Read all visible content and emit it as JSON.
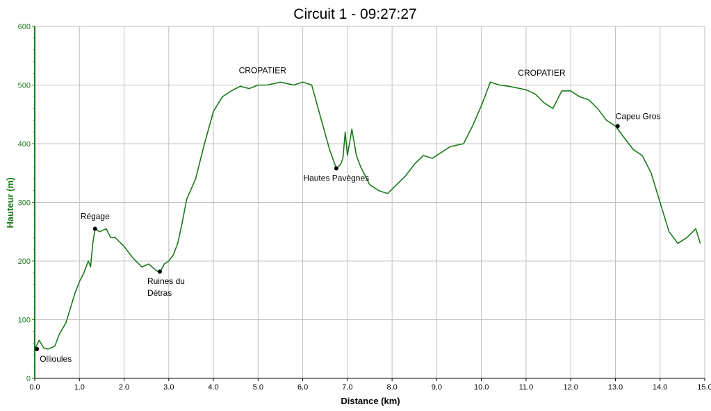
{
  "chart_data": {
    "type": "line",
    "title": "Circuit 1 - 09:27:27",
    "xlabel": "Distance (km)",
    "ylabel": "Hauteur (m)",
    "xlim": [
      0,
      15
    ],
    "ylim": [
      0,
      600
    ],
    "x_ticks": [
      "0.0",
      "1.0",
      "2.0",
      "3.0",
      "4.0",
      "5.0",
      "6.0",
      "7.0",
      "8.0",
      "9.0",
      "10.0",
      "11.0",
      "12.0",
      "13.0",
      "14.0",
      "15.0"
    ],
    "y_ticks": [
      "0",
      "100",
      "200",
      "300",
      "400",
      "500",
      "600"
    ],
    "grid": true,
    "legend": "none",
    "colors": {
      "line": "#1a7a1a",
      "y_axis": "#1a7a1a",
      "grid": "#c0c0c0",
      "marker": "#000000"
    },
    "series": [
      {
        "x": [
          0.0,
          0.1,
          0.2,
          0.3,
          0.45,
          0.55,
          0.7,
          0.8,
          0.9,
          1.0,
          1.1,
          1.2,
          1.25,
          1.3,
          1.35,
          1.45,
          1.6,
          1.7,
          1.8,
          2.0,
          2.2,
          2.4,
          2.55,
          2.7,
          2.8,
          2.9,
          3.0,
          3.1,
          3.2,
          3.3,
          3.4,
          3.6,
          3.8,
          4.0,
          4.2,
          4.4,
          4.6,
          4.8,
          5.0,
          5.2,
          5.5,
          5.8,
          6.0,
          6.2,
          6.4,
          6.6,
          6.75,
          6.85,
          6.9,
          6.95,
          7.0,
          7.1,
          7.2,
          7.3,
          7.5,
          7.7,
          7.9,
          8.1,
          8.3,
          8.5,
          8.7,
          8.9,
          9.1,
          9.3,
          9.6,
          9.8,
          10.0,
          10.2,
          10.4,
          10.6,
          10.8,
          11.0,
          11.2,
          11.4,
          11.6,
          11.8,
          12.0,
          12.2,
          12.4,
          12.6,
          12.8,
          13.0,
          13.2,
          13.4,
          13.6,
          13.8,
          14.0,
          14.2,
          14.4,
          14.6,
          14.8,
          14.9
        ],
        "y": [
          50,
          65,
          52,
          50,
          55,
          75,
          95,
          120,
          145,
          165,
          180,
          200,
          190,
          230,
          255,
          250,
          255,
          240,
          240,
          225,
          205,
          190,
          195,
          185,
          180,
          195,
          200,
          210,
          230,
          265,
          305,
          340,
          400,
          455,
          480,
          490,
          498,
          494,
          500,
          500,
          505,
          500,
          505,
          500,
          445,
          390,
          358,
          365,
          375,
          420,
          380,
          425,
          380,
          360,
          330,
          320,
          315,
          330,
          345,
          365,
          380,
          375,
          385,
          395,
          400,
          430,
          465,
          505,
          500,
          498,
          495,
          492,
          485,
          470,
          460,
          490,
          490,
          480,
          475,
          460,
          440,
          430,
          410,
          390,
          380,
          350,
          300,
          250,
          230,
          240,
          255,
          230
        ]
      }
    ],
    "annotations": [
      {
        "label": "Ollioules",
        "x": 0.05,
        "y": 50,
        "anchor": "below-right"
      },
      {
        "label": "Régage",
        "x": 1.35,
        "y": 255,
        "anchor": "above"
      },
      {
        "label": "Ruines du",
        "label2": "Détras",
        "x": 2.8,
        "y": 182,
        "anchor": "below"
      },
      {
        "label": "CROPATIER",
        "x": 5.1,
        "y": 520,
        "anchor": "text-only"
      },
      {
        "label": "Hautes Pavègnes",
        "x": 6.75,
        "y": 358,
        "anchor": "below"
      },
      {
        "label": "CROPATIER",
        "x": 11.35,
        "y": 516,
        "anchor": "text-only"
      },
      {
        "label": "Capeu Gros",
        "x": 13.05,
        "y": 430,
        "anchor": "above-right"
      }
    ]
  }
}
